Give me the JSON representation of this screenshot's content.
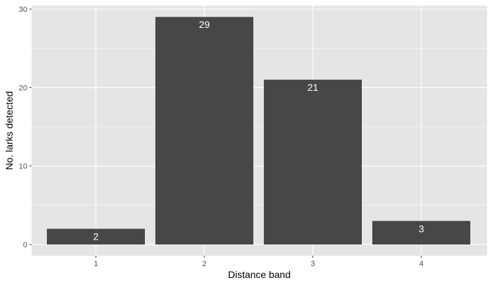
{
  "chart_data": {
    "type": "bar",
    "categories": [
      "1",
      "2",
      "3",
      "4"
    ],
    "values": [
      2,
      29,
      21,
      3
    ],
    "data_labels": [
      "2",
      "29",
      "21",
      "3"
    ],
    "xlabel": "Distance band",
    "ylabel": "No. larks detected",
    "ylim": [
      0,
      30
    ],
    "y_ticks": [
      0,
      10,
      20,
      30
    ],
    "y_tick_labels": [
      "0",
      "10",
      "20",
      "30"
    ],
    "grid": true,
    "legend": "none",
    "colors": {
      "bar": "#474747",
      "panel": "#e5e5e5",
      "grid": "#ffffff",
      "label": "#ffffff"
    }
  }
}
